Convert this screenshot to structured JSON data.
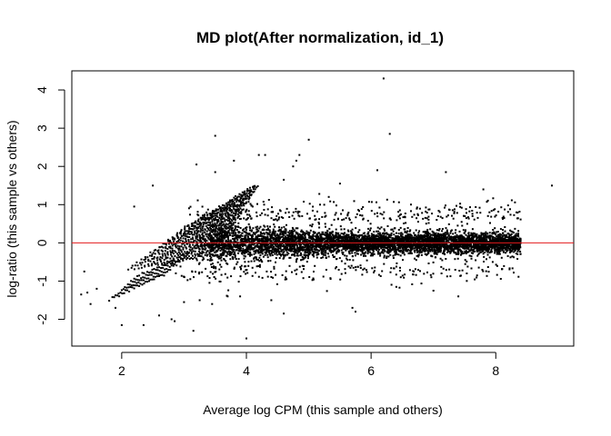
{
  "chart_data": {
    "type": "scatter",
    "title": "MD plot(After normalization, id_1)",
    "xlabel": "Average log CPM (this sample and others)",
    "ylabel": "log-ratio (this sample vs others)",
    "xlim": [
      1.2,
      9.25
    ],
    "ylim": [
      -2.7,
      4.5
    ],
    "x_ticks": [
      2,
      4,
      6,
      8
    ],
    "y_ticks": [
      -2,
      -1,
      0,
      1,
      2,
      3,
      4
    ],
    "reference_line": {
      "y": 0,
      "color": "#e31a1c"
    },
    "point_color": "#000000",
    "grid": false,
    "legend": "none",
    "points": [
      [
        6.2,
        4.3
      ],
      [
        6.3,
        2.85
      ],
      [
        3.5,
        2.8
      ],
      [
        4.2,
        2.3
      ],
      [
        4.3,
        2.3
      ],
      [
        5.0,
        2.7
      ],
      [
        4.85,
        2.3
      ],
      [
        4.8,
        2.15
      ],
      [
        4.75,
        2.0
      ],
      [
        3.8,
        2.15
      ],
      [
        3.2,
        2.05
      ],
      [
        3.5,
        1.85
      ],
      [
        4.6,
        1.65
      ],
      [
        7.2,
        1.85
      ],
      [
        8.9,
        1.5
      ],
      [
        2.5,
        1.5
      ],
      [
        2.2,
        0.95
      ],
      [
        6.1,
        1.9
      ],
      [
        7.8,
        1.4
      ],
      [
        5.5,
        1.55
      ],
      [
        1.4,
        -0.75
      ],
      [
        1.35,
        -1.35
      ],
      [
        1.45,
        -1.3
      ],
      [
        1.6,
        -1.2
      ],
      [
        1.5,
        -1.6
      ],
      [
        1.9,
        -1.7
      ],
      [
        2.0,
        -2.15
      ],
      [
        2.35,
        -2.15
      ],
      [
        2.6,
        -1.9
      ],
      [
        2.8,
        -2.0
      ],
      [
        2.85,
        -2.05
      ],
      [
        3.15,
        -2.3
      ],
      [
        3.45,
        -1.6
      ],
      [
        3.7,
        -1.4
      ],
      [
        3.9,
        -1.4
      ],
      [
        4.0,
        -2.5
      ],
      [
        4.4,
        -1.5
      ],
      [
        4.6,
        -1.85
      ],
      [
        5.7,
        -1.7
      ],
      [
        5.75,
        -1.8
      ],
      [
        7.0,
        -1.25
      ],
      [
        7.4,
        -1.4
      ],
      [
        3.25,
        -1.5
      ],
      [
        3.0,
        -1.55
      ]
    ],
    "point_cloud": {
      "x_range": [
        2.1,
        8.5
      ],
      "dense_band": "log-ratio roughly -0.8 to 0.8 for Average log CPM 3.5 to 8.4",
      "low_expression_stripes": "diagonal banding for Average log CPM 2.0 to 3.5"
    }
  }
}
